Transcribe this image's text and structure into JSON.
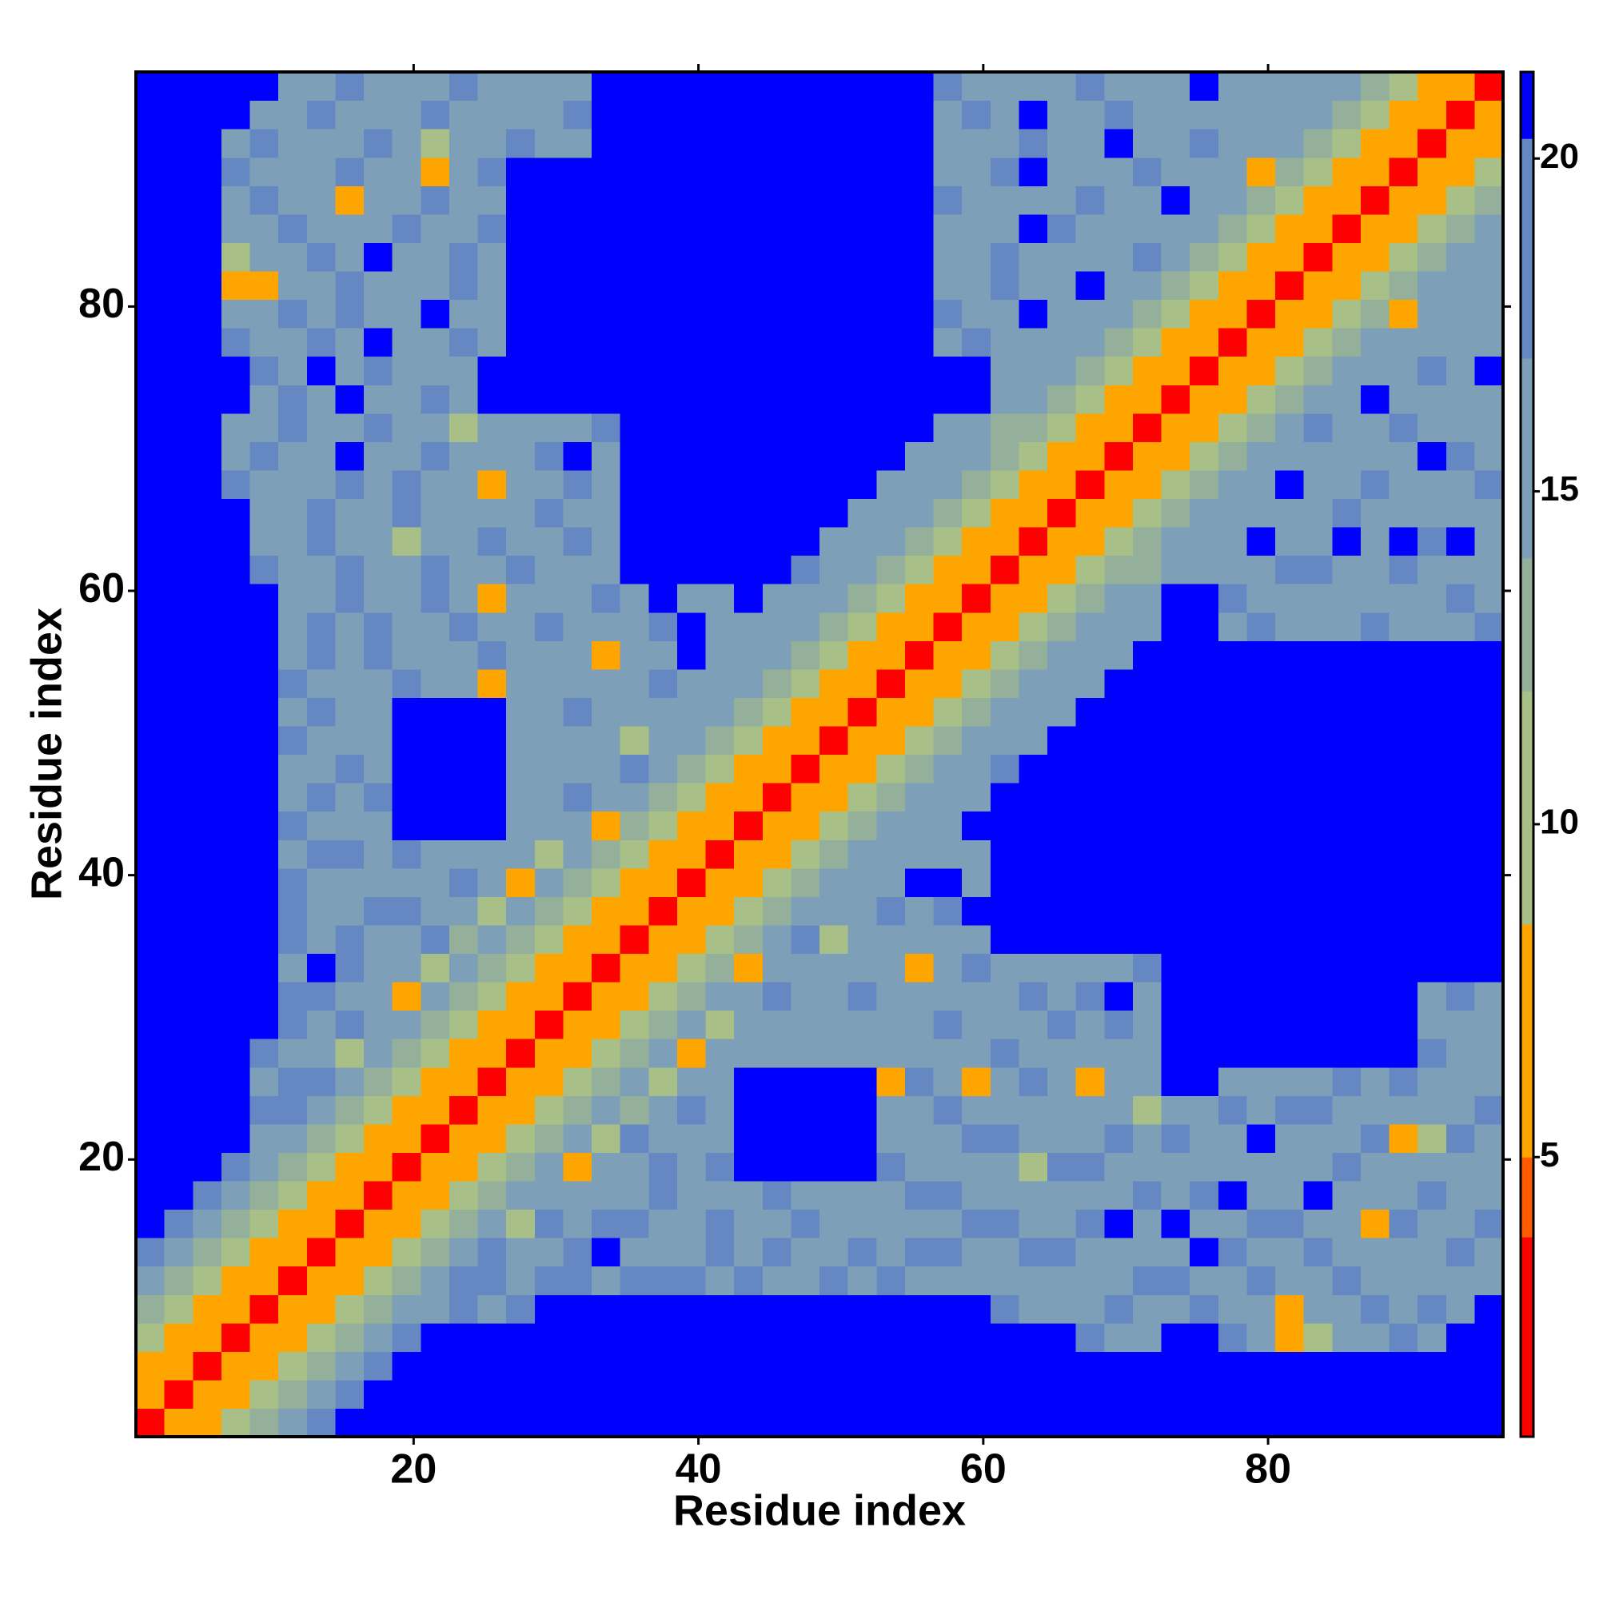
{
  "chart_data": {
    "type": "heatmap",
    "x_label": "Residue index",
    "y_label": "Residue index",
    "symmetric": true,
    "bins": [
      0.5,
      2.5,
      4.5,
      6.5,
      8.5,
      10.5,
      12.5,
      14.5,
      16.5,
      18.5,
      20.5,
      22.5,
      24.5,
      26.5,
      28.5,
      30.5,
      32.5,
      34.5,
      36.5,
      38.5,
      40.5,
      42.5,
      44.5,
      46.5,
      48.5,
      50.5,
      52.5,
      54.5,
      56.5,
      58.5,
      60.5,
      62.5,
      64.5,
      66.5,
      68.5,
      70.5,
      72.5,
      74.5,
      76.5,
      78.5,
      80.5,
      82.5,
      84.5,
      86.5,
      88.5,
      90.5,
      92.5,
      94.5,
      96.5
    ],
    "xlim": [
      0.5,
      96.5
    ],
    "ylim": [
      0.5,
      96.5
    ],
    "xticks": [
      20,
      40,
      60,
      80
    ],
    "yticks": [
      20,
      40,
      60,
      80
    ],
    "clim": [
      0.8,
      21.3
    ],
    "cticks": [
      5,
      10,
      15,
      20
    ],
    "colorscale": [
      {
        "value": 0.8,
        "color": "#ff0000"
      },
      {
        "value": 3.8,
        "color": "#ff5a00"
      },
      {
        "value": 5,
        "color": "#ffa500"
      },
      {
        "value": 8.5,
        "color": "#a9bf88"
      },
      {
        "value": 12,
        "color": "#94b09a"
      },
      {
        "value": 14,
        "color": "#7d9fb8"
      },
      {
        "value": 17,
        "color": "#6688c2"
      },
      {
        "value": 20.3,
        "color": "#0000ff"
      }
    ],
    "z": [
      [
        2
      ],
      [
        5,
        2
      ],
      [
        8,
        5,
        2
      ],
      [
        11,
        8,
        5,
        2
      ],
      [
        13,
        11,
        8,
        5,
        2
      ],
      [
        16,
        13,
        11,
        8,
        5,
        2
      ],
      [
        18,
        16,
        13,
        11,
        8,
        5,
        2
      ],
      [
        21,
        18,
        15,
        13,
        11,
        8,
        5,
        2
      ],
      [
        21,
        21,
        17,
        16,
        13,
        11,
        8,
        5,
        2
      ],
      [
        21,
        21,
        21,
        17,
        16,
        13,
        11,
        8,
        5,
        2
      ],
      [
        21,
        21,
        21,
        21,
        16,
        15,
        13,
        11,
        8,
        5,
        2
      ],
      [
        21,
        21,
        21,
        21,
        17,
        18,
        15,
        13,
        11,
        8,
        5,
        2
      ],
      [
        21,
        21,
        21,
        21,
        16,
        19,
        17,
        15,
        13,
        11,
        8,
        5,
        2
      ],
      [
        21,
        21,
        21,
        21,
        18,
        15,
        16,
        9,
        16,
        13,
        11,
        8,
        5,
        2
      ],
      [
        21,
        21,
        21,
        21,
        21,
        17,
        16,
        18,
        15,
        14,
        12,
        10,
        7,
        5,
        2
      ],
      [
        21,
        21,
        21,
        21,
        21,
        18,
        17,
        15,
        16,
        8,
        15,
        13,
        11,
        8,
        5,
        2
      ],
      [
        21,
        21,
        21,
        21,
        21,
        16,
        21,
        17,
        15,
        16,
        9,
        14,
        13,
        11,
        8,
        5,
        2
      ],
      [
        21,
        21,
        21,
        21,
        21,
        17,
        16,
        19,
        16,
        15,
        17,
        13,
        14,
        12,
        10,
        7,
        5,
        2
      ],
      [
        21,
        21,
        21,
        21,
        21,
        18,
        16,
        15,
        17,
        18,
        16,
        15,
        9,
        14,
        13,
        11,
        8,
        5,
        2
      ],
      [
        21,
        21,
        21,
        21,
        21,
        17,
        15,
        16,
        14,
        16,
        15,
        17,
        16,
        8,
        15,
        13,
        11,
        7,
        5,
        2
      ],
      [
        21,
        21,
        21,
        21,
        21,
        16,
        17,
        18,
        15,
        17,
        16,
        15,
        14,
        16,
        9,
        14,
        12,
        10,
        7,
        5,
        2
      ],
      [
        21,
        21,
        21,
        21,
        21,
        17,
        16,
        15,
        16,
        21,
        21,
        21,
        21,
        15,
        16,
        14,
        8,
        13,
        11,
        8,
        5,
        2
      ],
      [
        21,
        21,
        21,
        21,
        21,
        16,
        18,
        15,
        17,
        21,
        21,
        21,
        21,
        16,
        15,
        17,
        15,
        14,
        13,
        11,
        8,
        5,
        2
      ],
      [
        21,
        21,
        21,
        21,
        21,
        15,
        16,
        17,
        16,
        21,
        21,
        21,
        21,
        15,
        16,
        14,
        15,
        17,
        14,
        13,
        11,
        8,
        5,
        2
      ],
      [
        21,
        21,
        21,
        21,
        21,
        17,
        15,
        16,
        15,
        21,
        21,
        21,
        21,
        16,
        14,
        15,
        16,
        9,
        15,
        14,
        12,
        10,
        7,
        5,
        2
      ],
      [
        21,
        21,
        21,
        21,
        21,
        16,
        17,
        15,
        16,
        21,
        21,
        21,
        21,
        15,
        16,
        17,
        14,
        15,
        16,
        15,
        14,
        13,
        11,
        8,
        5,
        2
      ],
      [
        21,
        21,
        21,
        21,
        21,
        17,
        16,
        15,
        16,
        17,
        15,
        16,
        8,
        16,
        15,
        14,
        16,
        15,
        17,
        16,
        15,
        14,
        13,
        11,
        8,
        5,
        2
      ],
      [
        21,
        21,
        21,
        21,
        21,
        16,
        18,
        15,
        17,
        16,
        15,
        16,
        17,
        15,
        16,
        14,
        8,
        16,
        15,
        21,
        16,
        15,
        14,
        13,
        11,
        8,
        5,
        2
      ],
      [
        21,
        21,
        21,
        21,
        21,
        15,
        17,
        16,
        18,
        15,
        16,
        17,
        15,
        16,
        17,
        15,
        16,
        15,
        17,
        21,
        16,
        15,
        14,
        14,
        13,
        11,
        8,
        5,
        2
      ],
      [
        21,
        21,
        21,
        21,
        21,
        16,
        15,
        17,
        16,
        15,
        17,
        16,
        8,
        15,
        16,
        15,
        17,
        16,
        21,
        15,
        16,
        21,
        15,
        15,
        14,
        13,
        11,
        8,
        5,
        2
      ],
      [
        21,
        21,
        21,
        21,
        17,
        16,
        15,
        18,
        16,
        15,
        17,
        16,
        15,
        17,
        15,
        16,
        16,
        21,
        21,
        21,
        21,
        21,
        21,
        17,
        15,
        14,
        13,
        11,
        8,
        5,
        2
      ],
      [
        21,
        21,
        21,
        21,
        16,
        15,
        17,
        16,
        15,
        9,
        16,
        15,
        17,
        16,
        15,
        18,
        16,
        21,
        21,
        21,
        21,
        21,
        21,
        21,
        16,
        15,
        14,
        13,
        11,
        8,
        5,
        2
      ],
      [
        21,
        21,
        21,
        21,
        15,
        16,
        18,
        15,
        16,
        17,
        15,
        16,
        16,
        15,
        17,
        16,
        15,
        21,
        21,
        21,
        21,
        21,
        21,
        21,
        21,
        16,
        15,
        14,
        13,
        11,
        8,
        5,
        2
      ],
      [
        21,
        21,
        21,
        17,
        15,
        16,
        15,
        17,
        16,
        18,
        15,
        16,
        7,
        15,
        16,
        17,
        16,
        21,
        21,
        21,
        21,
        21,
        21,
        21,
        21,
        21,
        16,
        15,
        14,
        12,
        10,
        7,
        5,
        2
      ],
      [
        21,
        21,
        21,
        16,
        17,
        15,
        16,
        21,
        15,
        16,
        17,
        15,
        16,
        15,
        17,
        21,
        16,
        21,
        21,
        21,
        21,
        21,
        21,
        21,
        21,
        21,
        21,
        16,
        15,
        14,
        13,
        11,
        8,
        5,
        2
      ],
      [
        21,
        21,
        21,
        15,
        16,
        17,
        15,
        16,
        17,
        15,
        16,
        9,
        15,
        16,
        15,
        16,
        17,
        21,
        21,
        21,
        21,
        21,
        21,
        21,
        21,
        21,
        21,
        21,
        16,
        15,
        13,
        13,
        11,
        8,
        5,
        2
      ],
      [
        21,
        21,
        21,
        21,
        16,
        17,
        15,
        21,
        16,
        15,
        17,
        16,
        21,
        21,
        21,
        21,
        21,
        21,
        21,
        21,
        21,
        21,
        21,
        21,
        21,
        21,
        21,
        21,
        21,
        21,
        16,
        14,
        12,
        10,
        7,
        5,
        2
      ],
      [
        21,
        21,
        21,
        21,
        17,
        15,
        21,
        16,
        17,
        16,
        15,
        16,
        21,
        21,
        21,
        21,
        21,
        21,
        21,
        21,
        21,
        21,
        21,
        21,
        21,
        21,
        21,
        21,
        21,
        21,
        15,
        16,
        14,
        13,
        11,
        8,
        5,
        2
      ],
      [
        21,
        21,
        21,
        17,
        16,
        15,
        17,
        16,
        21,
        15,
        16,
        17,
        15,
        21,
        21,
        21,
        21,
        21,
        21,
        21,
        21,
        21,
        21,
        21,
        21,
        21,
        21,
        21,
        16,
        17,
        15,
        16,
        15,
        14,
        13,
        11,
        8,
        5,
        2
      ],
      [
        21,
        21,
        21,
        16,
        15,
        17,
        16,
        18,
        15,
        16,
        21,
        15,
        16,
        21,
        21,
        21,
        21,
        21,
        21,
        21,
        21,
        21,
        21,
        21,
        21,
        21,
        21,
        21,
        17,
        15,
        16,
        21,
        16,
        15,
        14,
        13,
        11,
        8,
        5,
        2
      ],
      [
        21,
        21,
        21,
        8,
        7,
        16,
        15,
        17,
        16,
        15,
        16,
        17,
        16,
        21,
        21,
        21,
        21,
        21,
        21,
        21,
        21,
        21,
        21,
        21,
        21,
        21,
        21,
        21,
        16,
        15,
        17,
        16,
        15,
        21,
        16,
        14,
        13,
        11,
        8,
        5,
        2
      ],
      [
        21,
        21,
        21,
        9,
        16,
        15,
        17,
        16,
        21,
        16,
        15,
        17,
        16,
        21,
        21,
        21,
        21,
        21,
        21,
        21,
        21,
        21,
        21,
        21,
        21,
        21,
        21,
        21,
        15,
        16,
        17,
        15,
        16,
        15,
        16,
        17,
        14,
        12,
        10,
        7,
        5,
        2
      ],
      [
        21,
        21,
        21,
        16,
        15,
        17,
        16,
        15,
        16,
        17,
        16,
        15,
        17,
        21,
        21,
        21,
        21,
        21,
        21,
        21,
        21,
        21,
        21,
        21,
        21,
        21,
        21,
        21,
        16,
        15,
        16,
        21,
        17,
        15,
        16,
        15,
        16,
        14,
        13,
        11,
        8,
        5,
        2
      ],
      [
        21,
        21,
        21,
        15,
        17,
        16,
        15,
        8,
        16,
        15,
        17,
        16,
        15,
        21,
        21,
        21,
        21,
        21,
        21,
        21,
        21,
        21,
        21,
        21,
        21,
        21,
        21,
        21,
        17,
        16,
        15,
        16,
        15,
        17,
        16,
        15,
        21,
        15,
        14,
        13,
        11,
        8,
        5,
        2
      ],
      [
        21,
        21,
        21,
        17,
        16,
        15,
        16,
        17,
        15,
        16,
        8,
        15,
        17,
        21,
        21,
        21,
        21,
        21,
        21,
        21,
        21,
        21,
        21,
        21,
        21,
        21,
        21,
        21,
        16,
        15,
        17,
        21,
        16,
        15,
        16,
        17,
        15,
        16,
        15,
        8,
        13,
        11,
        8,
        5,
        2
      ],
      [
        21,
        21,
        21,
        16,
        17,
        15,
        16,
        15,
        17,
        16,
        9,
        15,
        16,
        17,
        16,
        15,
        21,
        21,
        21,
        21,
        21,
        21,
        21,
        21,
        21,
        21,
        21,
        21,
        15,
        16,
        15,
        17,
        16,
        15,
        21,
        16,
        15,
        17,
        16,
        15,
        14,
        13,
        11,
        8,
        5,
        2
      ],
      [
        21,
        21,
        21,
        21,
        16,
        15,
        17,
        16,
        15,
        16,
        17,
        15,
        16,
        15,
        16,
        17,
        21,
        21,
        21,
        21,
        21,
        21,
        21,
        21,
        21,
        21,
        21,
        21,
        16,
        17,
        15,
        21,
        16,
        15,
        17,
        16,
        15,
        16,
        14,
        15,
        16,
        14,
        12,
        10,
        8,
        5,
        2
      ],
      [
        21,
        21,
        21,
        21,
        21,
        16,
        15,
        17,
        16,
        15,
        16,
        17,
        15,
        16,
        15,
        16,
        21,
        21,
        21,
        21,
        21,
        21,
        21,
        21,
        21,
        21,
        21,
        21,
        17,
        15,
        16,
        15,
        16,
        17,
        15,
        16,
        15,
        21,
        16,
        15,
        16,
        15,
        14,
        13,
        11,
        8,
        5,
        2
      ]
    ]
  }
}
